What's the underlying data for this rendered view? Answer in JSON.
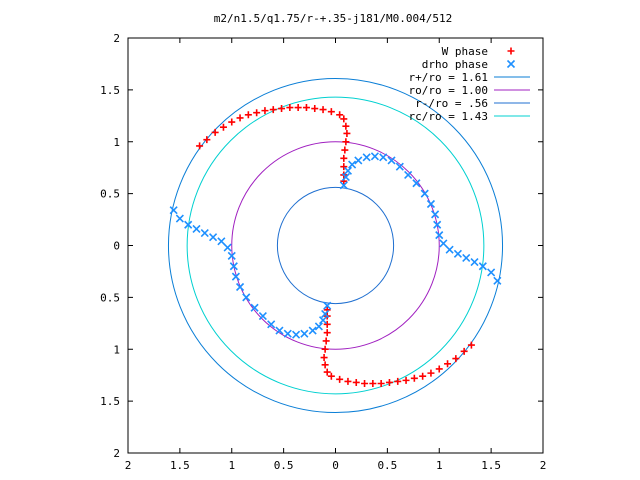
{
  "chart_data": {
    "type": "scatter",
    "title": "m2/n1.5/q1.75/r-+.35-j181/M0.004/512",
    "xlim": [
      -2,
      2
    ],
    "ylim": [
      -2,
      2
    ],
    "x_ticks": [
      {
        "value": -2,
        "label": "2"
      },
      {
        "value": -1.5,
        "label": "1.5"
      },
      {
        "value": -1,
        "label": "1"
      },
      {
        "value": -0.5,
        "label": "0.5"
      },
      {
        "value": 0,
        "label": "0"
      },
      {
        "value": 0.5,
        "label": "0.5"
      },
      {
        "value": 1,
        "label": "1"
      },
      {
        "value": 1.5,
        "label": "1.5"
      },
      {
        "value": 2,
        "label": "2"
      }
    ],
    "y_ticks": [
      {
        "value": 2,
        "label": "2"
      },
      {
        "value": 1.5,
        "label": "1.5"
      },
      {
        "value": 1,
        "label": "1"
      },
      {
        "value": 0.5,
        "label": "0.5"
      },
      {
        "value": 0,
        "label": "0"
      },
      {
        "value": -0.5,
        "label": "0.5"
      },
      {
        "value": -1,
        "label": "1"
      },
      {
        "value": -1.5,
        "label": "1.5"
      },
      {
        "value": -2,
        "label": "2"
      }
    ],
    "legend_position": "top-right",
    "grid": false,
    "circles": [
      {
        "label": "r+/ro = 1.61",
        "radius": 1.61,
        "color": "#0a7ed6"
      },
      {
        "label": "ro/ro = 1.00",
        "radius": 1.0,
        "color": "#a020c0"
      },
      {
        "label": "r-/ro = .56",
        "radius": 0.56,
        "color": "#1f6fd0"
      },
      {
        "label": "rc/ro = 1.43",
        "radius": 1.43,
        "color": "#00d0d0"
      }
    ],
    "series": [
      {
        "name": "W phase",
        "marker": "plus",
        "color": "#ff0000",
        "points": [
          [
            -1.31,
            0.96
          ],
          [
            -1.24,
            1.02
          ],
          [
            -1.16,
            1.09
          ],
          [
            -1.08,
            1.14
          ],
          [
            -1.0,
            1.19
          ],
          [
            -0.92,
            1.23
          ],
          [
            -0.84,
            1.26
          ],
          [
            -0.76,
            1.28
          ],
          [
            -0.68,
            1.3
          ],
          [
            -0.6,
            1.31
          ],
          [
            -0.52,
            1.32
          ],
          [
            -0.44,
            1.33
          ],
          [
            -0.36,
            1.33
          ],
          [
            -0.28,
            1.33
          ],
          [
            -0.2,
            1.32
          ],
          [
            -0.12,
            1.31
          ],
          [
            -0.04,
            1.29
          ],
          [
            0.04,
            1.26
          ],
          [
            0.08,
            1.22
          ],
          [
            0.1,
            1.15
          ],
          [
            0.11,
            1.08
          ],
          [
            0.1,
            1.0
          ],
          [
            0.09,
            0.92
          ],
          [
            0.08,
            0.84
          ],
          [
            0.08,
            0.76
          ],
          [
            0.08,
            0.68
          ],
          [
            0.08,
            0.62
          ],
          [
            1.31,
            -0.96
          ],
          [
            1.24,
            -1.02
          ],
          [
            1.16,
            -1.09
          ],
          [
            1.08,
            -1.14
          ],
          [
            1.0,
            -1.19
          ],
          [
            0.92,
            -1.23
          ],
          [
            0.84,
            -1.26
          ],
          [
            0.76,
            -1.28
          ],
          [
            0.68,
            -1.3
          ],
          [
            0.6,
            -1.31
          ],
          [
            0.52,
            -1.32
          ],
          [
            0.44,
            -1.33
          ],
          [
            0.36,
            -1.33
          ],
          [
            0.28,
            -1.33
          ],
          [
            0.2,
            -1.32
          ],
          [
            0.12,
            -1.31
          ],
          [
            0.04,
            -1.29
          ],
          [
            -0.04,
            -1.26
          ],
          [
            -0.08,
            -1.22
          ],
          [
            -0.1,
            -1.15
          ],
          [
            -0.11,
            -1.08
          ],
          [
            -0.1,
            -1.0
          ],
          [
            -0.09,
            -0.92
          ],
          [
            -0.08,
            -0.84
          ],
          [
            -0.08,
            -0.76
          ],
          [
            -0.08,
            -0.68
          ],
          [
            -0.08,
            -0.62
          ]
        ]
      },
      {
        "name": "drho phase",
        "marker": "cross",
        "color": "#1e90ff",
        "points": [
          [
            0.08,
            0.58
          ],
          [
            0.1,
            0.66
          ],
          [
            0.12,
            0.72
          ],
          [
            0.16,
            0.78
          ],
          [
            0.22,
            0.82
          ],
          [
            0.3,
            0.85
          ],
          [
            0.38,
            0.86
          ],
          [
            0.46,
            0.85
          ],
          [
            0.54,
            0.82
          ],
          [
            0.62,
            0.76
          ],
          [
            0.7,
            0.68
          ],
          [
            0.78,
            0.6
          ],
          [
            0.86,
            0.5
          ],
          [
            0.92,
            0.4
          ],
          [
            0.96,
            0.3
          ],
          [
            0.98,
            0.2
          ],
          [
            1.0,
            0.1
          ],
          [
            1.04,
            0.02
          ],
          [
            1.1,
            -0.04
          ],
          [
            1.18,
            -0.08
          ],
          [
            1.26,
            -0.12
          ],
          [
            1.34,
            -0.16
          ],
          [
            1.42,
            -0.2
          ],
          [
            1.5,
            -0.26
          ],
          [
            1.56,
            -0.34
          ],
          [
            -0.08,
            -0.58
          ],
          [
            -0.1,
            -0.66
          ],
          [
            -0.12,
            -0.72
          ],
          [
            -0.16,
            -0.78
          ],
          [
            -0.22,
            -0.82
          ],
          [
            -0.3,
            -0.85
          ],
          [
            -0.38,
            -0.86
          ],
          [
            -0.46,
            -0.85
          ],
          [
            -0.54,
            -0.82
          ],
          [
            -0.62,
            -0.76
          ],
          [
            -0.7,
            -0.68
          ],
          [
            -0.78,
            -0.6
          ],
          [
            -0.86,
            -0.5
          ],
          [
            -0.92,
            -0.4
          ],
          [
            -0.96,
            -0.3
          ],
          [
            -0.98,
            -0.2
          ],
          [
            -1.0,
            -0.1
          ],
          [
            -1.04,
            -0.02
          ],
          [
            -1.1,
            0.04
          ],
          [
            -1.18,
            0.08
          ],
          [
            -1.26,
            0.12
          ],
          [
            -1.34,
            0.16
          ],
          [
            -1.42,
            0.2
          ],
          [
            -1.5,
            0.26
          ],
          [
            -1.56,
            0.34
          ]
        ]
      }
    ],
    "legend": [
      {
        "label": "W phase",
        "kind": "plus",
        "color": "#ff0000"
      },
      {
        "label": "drho phase",
        "kind": "cross",
        "color": "#1e90ff"
      },
      {
        "label": "r+/ro = 1.61",
        "kind": "line",
        "color": "#0a7ed6"
      },
      {
        "label": "ro/ro = 1.00",
        "kind": "line",
        "color": "#a020c0"
      },
      {
        "label": "r-/ro = .56",
        "kind": "line",
        "color": "#1f6fd0"
      },
      {
        "label": "rc/ro = 1.43",
        "kind": "line",
        "color": "#00d0d0"
      }
    ]
  }
}
